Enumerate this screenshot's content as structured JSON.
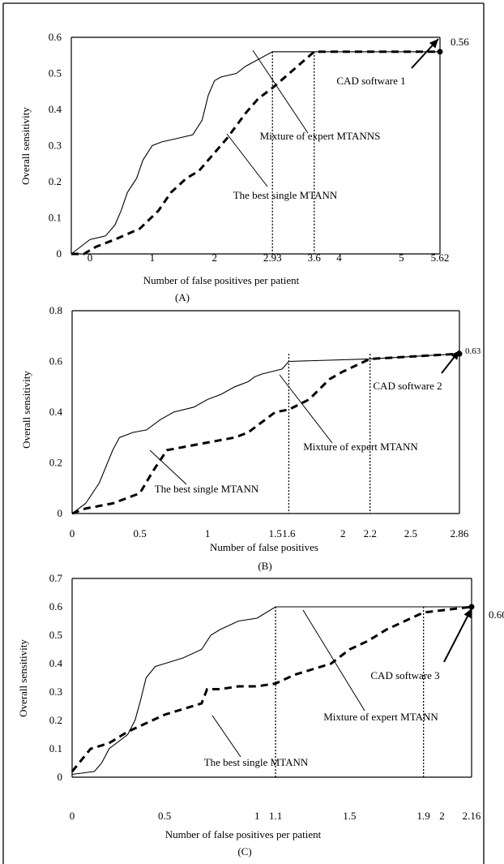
{
  "chart_data": [
    {
      "type": "line",
      "caption": "(A)",
      "xlabel": "Number of false positives per patient",
      "ylabel": "Overall sensitivity",
      "xlim": [
        -0.3,
        5.62
      ],
      "ylim": [
        0,
        0.6
      ],
      "y_ticks": [
        "0",
        "0.1",
        "0.2",
        "0.3",
        "0.4",
        "0.5",
        "0.6"
      ],
      "x_ticks": [
        {
          "v": 0,
          "label": "0"
        },
        {
          "v": 1,
          "label": "1"
        },
        {
          "v": 2,
          "label": "2"
        },
        {
          "v": 2.93,
          "label": "2.93"
        },
        {
          "v": 3.6,
          "label": "3.6"
        },
        {
          "v": 4,
          "label": "4"
        },
        {
          "v": 5,
          "label": "5"
        },
        {
          "v": 5.62,
          "label": "5.62"
        }
      ],
      "end_value_label": "0.56",
      "vlines": [
        2.93,
        3.6
      ],
      "annotations": {
        "cad": "CAD software 1",
        "mixture": "Mixture of expert MTANNS",
        "single": "The best single MTANN"
      },
      "series": [
        {
          "style": "solid",
          "x": [
            -0.3,
            0.0,
            0.25,
            0.4,
            0.5,
            0.6,
            0.75,
            0.85,
            1.0,
            1.15,
            1.4,
            1.65,
            1.8,
            1.9,
            2.0,
            2.1,
            2.35,
            2.5,
            2.93,
            3.6,
            5.62
          ],
          "y": [
            0,
            0.04,
            0.05,
            0.08,
            0.12,
            0.17,
            0.21,
            0.26,
            0.3,
            0.31,
            0.32,
            0.33,
            0.37,
            0.44,
            0.48,
            0.49,
            0.5,
            0.52,
            0.56,
            0.56,
            0.56
          ]
        },
        {
          "style": "dashed",
          "x": [
            -0.3,
            -0.1,
            0.1,
            0.4,
            0.8,
            1.1,
            1.3,
            1.55,
            1.75,
            1.95,
            2.2,
            2.5,
            2.7,
            2.93,
            3.2,
            3.6,
            5.62
          ],
          "y": [
            0,
            0.0,
            0.02,
            0.04,
            0.07,
            0.12,
            0.17,
            0.21,
            0.23,
            0.27,
            0.32,
            0.39,
            0.43,
            0.46,
            0.5,
            0.56,
            0.56
          ]
        }
      ]
    },
    {
      "type": "line",
      "caption": "(B)",
      "xlabel": "Number of false positives",
      "ylabel": "Overall sensitivity",
      "xlim": [
        0,
        2.86
      ],
      "ylim": [
        0,
        0.8
      ],
      "y_ticks": [
        "0",
        "0.2",
        "0.4",
        "0.6",
        "0.8"
      ],
      "x_ticks": [
        {
          "v": 0,
          "label": "0"
        },
        {
          "v": 0.5,
          "label": "0.5"
        },
        {
          "v": 1,
          "label": "1"
        },
        {
          "v": 1.5,
          "label": "1.5"
        },
        {
          "v": 1.6,
          "label": "1.6"
        },
        {
          "v": 2,
          "label": "2"
        },
        {
          "v": 2.2,
          "label": "2.2"
        },
        {
          "v": 2.5,
          "label": "2.5"
        },
        {
          "v": 2.86,
          "label": "2.86"
        }
      ],
      "end_value_label": "0.63",
      "vlines": [
        1.6,
        2.2
      ],
      "annotations": {
        "cad": "CAD software 2",
        "mixture": "Mixture of expert MTANN",
        "single": "The best single MTANN"
      },
      "series": [
        {
          "style": "solid",
          "x": [
            0,
            0.1,
            0.2,
            0.3,
            0.35,
            0.45,
            0.55,
            0.65,
            0.75,
            0.9,
            1.0,
            1.1,
            1.2,
            1.3,
            1.35,
            1.4,
            1.55,
            1.6,
            2.2,
            2.86
          ],
          "y": [
            0,
            0.04,
            0.12,
            0.25,
            0.3,
            0.32,
            0.33,
            0.37,
            0.4,
            0.42,
            0.45,
            0.47,
            0.5,
            0.52,
            0.54,
            0.55,
            0.57,
            0.6,
            0.61,
            0.63
          ]
        },
        {
          "style": "dashed",
          "x": [
            0,
            0.1,
            0.3,
            0.5,
            0.6,
            0.7,
            0.9,
            1.0,
            1.2,
            1.3,
            1.4,
            1.5,
            1.6,
            1.75,
            1.9,
            2.0,
            2.2,
            2.86
          ],
          "y": [
            0,
            0.02,
            0.04,
            0.08,
            0.17,
            0.25,
            0.27,
            0.28,
            0.3,
            0.32,
            0.36,
            0.4,
            0.41,
            0.45,
            0.53,
            0.56,
            0.61,
            0.63
          ]
        }
      ]
    },
    {
      "type": "line",
      "caption": "(C)",
      "xlabel": "Number of false positives per patient",
      "ylabel": "Overall sensitivity",
      "xlim": [
        0,
        2.16
      ],
      "ylim": [
        0,
        0.7
      ],
      "y_ticks": [
        "0",
        "0.1",
        "0.2",
        "0.3",
        "0.4",
        "0.5",
        "0.6",
        "0.7"
      ],
      "x_ticks": [
        {
          "v": 0,
          "label": "0"
        },
        {
          "v": 0.5,
          "label": "0.5"
        },
        {
          "v": 1,
          "label": "1"
        },
        {
          "v": 1.1,
          "label": "1.1"
        },
        {
          "v": 1.5,
          "label": "1.5"
        },
        {
          "v": 1.9,
          "label": "1.9"
        },
        {
          "v": 2,
          "label": "2"
        },
        {
          "v": 2.16,
          "label": "2.16"
        }
      ],
      "end_value_label": "0.60",
      "vlines": [
        1.1,
        1.9
      ],
      "annotations": {
        "cad": "CAD software 3",
        "mixture": "Mixture of expert MTANN",
        "single": "The best single MTANN"
      },
      "series": [
        {
          "style": "solid",
          "x": [
            0,
            0.12,
            0.16,
            0.2,
            0.3,
            0.34,
            0.37,
            0.4,
            0.45,
            0.5,
            0.6,
            0.7,
            0.75,
            0.8,
            0.9,
            1.0,
            1.1,
            1.9,
            2.16
          ],
          "y": [
            0.01,
            0.02,
            0.05,
            0.1,
            0.15,
            0.2,
            0.27,
            0.35,
            0.39,
            0.4,
            0.42,
            0.45,
            0.5,
            0.52,
            0.55,
            0.56,
            0.6,
            0.6,
            0.6
          ]
        },
        {
          "style": "dashed",
          "x": [
            0,
            0.1,
            0.2,
            0.3,
            0.4,
            0.5,
            0.6,
            0.7,
            0.73,
            0.8,
            0.9,
            1.0,
            1.1,
            1.2,
            1.3,
            1.4,
            1.5,
            1.6,
            1.7,
            1.8,
            1.9,
            2.16
          ],
          "y": [
            0.02,
            0.1,
            0.12,
            0.16,
            0.19,
            0.22,
            0.24,
            0.26,
            0.31,
            0.31,
            0.32,
            0.32,
            0.33,
            0.36,
            0.38,
            0.4,
            0.45,
            0.48,
            0.52,
            0.55,
            0.58,
            0.6
          ]
        }
      ]
    }
  ]
}
